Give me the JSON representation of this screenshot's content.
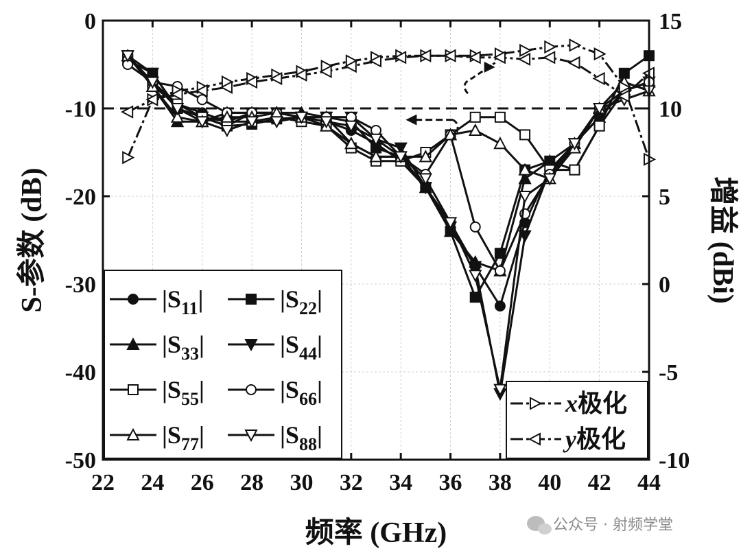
{
  "chart_data": {
    "type": "line",
    "xlabel": "频率 (GHz)",
    "ylabel_left": "S-参数 (dB)",
    "ylabel_right": "增益 (dBi)",
    "xlim": [
      22,
      44
    ],
    "ylim_left": [
      -50,
      0
    ],
    "ylim_right": [
      -10,
      15
    ],
    "x_ticks": [
      22,
      24,
      26,
      28,
      30,
      32,
      34,
      36,
      38,
      40,
      42,
      44
    ],
    "y_left_ticks": [
      0,
      -10,
      -20,
      -30,
      -40,
      -50
    ],
    "y_right_ticks": [
      15,
      10,
      5,
      0,
      -5,
      -10
    ],
    "grid": true,
    "reference_line": {
      "axis": "left",
      "value": -10,
      "style": "dashed"
    },
    "annotations": [
      {
        "text": "arrow → right axis (gain curves)",
        "at": [
          36.5,
          -4.7
        ]
      },
      {
        "text": "arrow ← left axis (S-parameters)",
        "at": [
          35.5,
          -11.1
        ]
      }
    ],
    "x": [
      23,
      24,
      25,
      26,
      27,
      28,
      29,
      30,
      31,
      32,
      33,
      34,
      35,
      36,
      37,
      38,
      39,
      40,
      41,
      42,
      43,
      44
    ],
    "series": [
      {
        "name": "|S11|",
        "sub": "11",
        "axis": "left",
        "marker": "circle-filled",
        "values": [
          -4,
          -7,
          -9.5,
          -10.5,
          -11.5,
          -10.5,
          -10.5,
          -11,
          -11.5,
          -12.5,
          -14,
          -16,
          -19,
          -23,
          -28,
          -32.5,
          -23,
          -17,
          -14,
          -11,
          -8,
          -7
        ]
      },
      {
        "name": "|S22|",
        "sub": "22",
        "axis": "left",
        "marker": "square-filled",
        "values": [
          -4.5,
          -6,
          -10,
          -11,
          -12,
          -11.8,
          -11.2,
          -11,
          -11,
          -11.5,
          -14.5,
          -15.5,
          -19,
          -24,
          -31.5,
          -26.5,
          -17,
          -16,
          -17,
          -12,
          -6,
          -4
        ]
      },
      {
        "name": "|S33|",
        "sub": "33",
        "axis": "left",
        "marker": "triangle-up-filled",
        "values": [
          -4,
          -7.5,
          -11.5,
          -11.5,
          -10.5,
          -10.5,
          -10.5,
          -10.5,
          -11,
          -14,
          -15.5,
          -15.5,
          -19,
          -24,
          -27.5,
          -28.5,
          -18,
          -16,
          -14,
          -11,
          -8,
          -7
        ]
      },
      {
        "name": "|S44|",
        "sub": "44",
        "axis": "left",
        "marker": "triangle-down-filled",
        "values": [
          -4,
          -6,
          -10,
          -11,
          -12,
          -10.5,
          -10.5,
          -11,
          -11,
          -11,
          -13.5,
          -14.5,
          -19,
          -23.5,
          -28,
          -42.5,
          -24.5,
          -17,
          -14,
          -11,
          -8,
          -7
        ]
      },
      {
        "name": "|S55|",
        "sub": "55",
        "axis": "left",
        "marker": "square-open",
        "values": [
          -4,
          -7.5,
          -9.5,
          -11,
          -11.5,
          -11.5,
          -11,
          -11.5,
          -12,
          -14.5,
          -16,
          -16,
          -15,
          -13,
          -11,
          -11,
          -13,
          -17,
          -17,
          -12,
          -8,
          -7
        ]
      },
      {
        "name": "|S66|",
        "sub": "66",
        "axis": "left",
        "marker": "circle-open",
        "values": [
          -5,
          -7,
          -7.5,
          -9,
          -10.5,
          -10.5,
          -10.5,
          -11,
          -11,
          -11,
          -12.5,
          -15.5,
          -17.5,
          -13,
          -23.5,
          -28.5,
          -22,
          -17.5,
          -14,
          -10,
          -8,
          -7
        ]
      },
      {
        "name": "|S77|",
        "sub": "77",
        "axis": "left",
        "marker": "triangle-up-open",
        "values": [
          -4,
          -7.5,
          -11,
          -11.5,
          -11,
          -11,
          -10.5,
          -11,
          -12,
          -14,
          -15.5,
          -15.5,
          -15.5,
          -13,
          -12.5,
          -14,
          -17,
          -18,
          -14.5,
          -10,
          -7,
          -8
        ]
      },
      {
        "name": "|S88|",
        "sub": "88",
        "axis": "left",
        "marker": "triangle-down-open",
        "values": [
          -4,
          -7,
          -10,
          -11.5,
          -12.5,
          -11.5,
          -11.5,
          -11,
          -11.5,
          -12,
          -13.5,
          -15.5,
          -18,
          -23,
          -29,
          -42,
          -20,
          -18,
          -14,
          -10,
          -9,
          -8
        ]
      },
      {
        "name": "x极化",
        "axis": "right",
        "marker": "triangle-right-open",
        "dash": "dash-dot",
        "values": [
          7.2,
          10.5,
          11,
          11.2,
          11.5,
          11.7,
          11.9,
          12.1,
          12.4,
          12.7,
          12.9,
          13.0,
          13.0,
          13.0,
          13.0,
          13.1,
          13.3,
          13.5,
          13.6,
          13.1,
          11.2,
          7.1
        ]
      },
      {
        "name": "y极化",
        "axis": "right",
        "marker": "triangle-left-open",
        "dash": "dash-dot",
        "values": [
          9.8,
          10.5,
          10.8,
          11.0,
          11.2,
          11.5,
          11.7,
          11.9,
          12.1,
          12.4,
          12.7,
          12.9,
          13.0,
          13.0,
          12.9,
          12.9,
          12.8,
          12.9,
          12.6,
          11.7,
          10.7,
          12.0
        ]
      }
    ],
    "legend_left": [
      {
        "label": "|S",
        "sub": "11",
        "tail": "|"
      },
      {
        "label": "|S",
        "sub": "22",
        "tail": "|"
      },
      {
        "label": "|S",
        "sub": "33",
        "tail": "|"
      },
      {
        "label": "|S",
        "sub": "44",
        "tail": "|"
      },
      {
        "label": "|S",
        "sub": "55",
        "tail": "|"
      },
      {
        "label": "|S",
        "sub": "66",
        "tail": "|"
      },
      {
        "label": "|S",
        "sub": "77",
        "tail": "|"
      },
      {
        "label": "|S",
        "sub": "88",
        "tail": "|"
      }
    ],
    "legend_right": [
      {
        "var": "x",
        "text": "极化"
      },
      {
        "var": "y",
        "text": "极化"
      }
    ]
  },
  "watermark": {
    "text": "公众号 · 射频学堂",
    "icon": "wechat-icon"
  }
}
